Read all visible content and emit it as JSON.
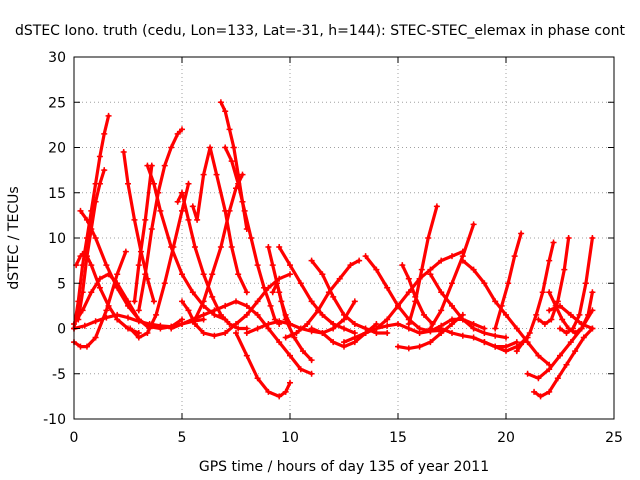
{
  "chart_data": {
    "type": "scatter",
    "title": "dSTEC Iono. truth (cedu, Lon=133, Lat=-31, h=144): STEC-STEC_elemax in phase cont",
    "xlabel": "GPS time / hours of day 135 of year 2011",
    "ylabel": "dSTEC  / TECUs",
    "xlim": [
      0,
      25
    ],
    "ylim": [
      -10,
      30
    ],
    "xticks": [
      0,
      5,
      10,
      15,
      20,
      25
    ],
    "yticks": [
      -10,
      -5,
      0,
      5,
      10,
      15,
      20,
      25,
      30
    ],
    "xtick_labels": [
      "0",
      "5",
      "10",
      "15",
      "20",
      "25"
    ],
    "ytick_labels": [
      "-10",
      "-5",
      "0",
      "5",
      "10",
      "15",
      "20",
      "25",
      "30"
    ],
    "grid": true,
    "marker": "+",
    "color": "#ff0000",
    "series": [
      {
        "x": [
          0.0,
          0.4,
          0.8,
          1.2,
          1.6,
          2.0,
          2.5,
          3.0,
          3.5
        ],
        "y": [
          0.5,
          2.0,
          4.0,
          5.5,
          6.0,
          5.0,
          3.0,
          1.0,
          0.0
        ]
      },
      {
        "x": [
          0.0,
          0.2,
          0.4,
          0.6,
          0.8,
          1.0,
          1.2,
          1.4,
          1.6
        ],
        "y": [
          0.0,
          3.0,
          7.0,
          10.0,
          13.0,
          16.0,
          19.0,
          21.5,
          23.5
        ]
      },
      {
        "x": [
          0.2,
          0.4,
          0.6,
          0.8,
          1.0,
          1.2,
          1.4
        ],
        "y": [
          1.0,
          4.0,
          8.0,
          11.0,
          14.0,
          16.0,
          17.5
        ]
      },
      {
        "x": [
          0.1,
          0.3,
          0.5,
          0.8,
          1.2,
          1.6,
          2.0,
          2.5,
          3.0
        ],
        "y": [
          7.0,
          8.0,
          8.5,
          7.0,
          4.5,
          2.5,
          1.0,
          0.0,
          -0.5
        ]
      },
      {
        "x": [
          0.3,
          0.6,
          1.0,
          1.5,
          2.0,
          2.5,
          3.0,
          3.5,
          4.0,
          4.5,
          5.0
        ],
        "y": [
          13.0,
          12.0,
          10.0,
          7.0,
          4.5,
          2.5,
          1.0,
          0.2,
          0.0,
          0.2,
          1.0
        ]
      },
      {
        "x": [
          0.0,
          0.3,
          0.6,
          1.0,
          1.5,
          2.0,
          2.4
        ],
        "y": [
          -1.5,
          -2.0,
          -2.0,
          -1.0,
          2.0,
          6.0,
          8.5
        ]
      },
      {
        "x": [
          0.0,
          0.5,
          1.0,
          1.5,
          2.0,
          2.5,
          3.0,
          3.5,
          4.0,
          4.5,
          5.0,
          5.5,
          6.0
        ],
        "y": [
          0.0,
          0.3,
          0.8,
          1.2,
          1.5,
          1.2,
          0.8,
          0.5,
          0.3,
          0.2,
          0.5,
          0.8,
          1.0
        ]
      },
      {
        "x": [
          2.3,
          2.5,
          2.8,
          3.1,
          3.4,
          3.7
        ],
        "y": [
          19.5,
          16.0,
          12.0,
          8.5,
          5.5,
          3.0
        ]
      },
      {
        "x": [
          2.6,
          3.0,
          3.4,
          3.8,
          4.2,
          4.6,
          5.0,
          5.3
        ],
        "y": [
          0.0,
          -1.0,
          -0.5,
          1.5,
          5.0,
          9.0,
          13.0,
          16.0
        ]
      },
      {
        "x": [
          3.0,
          3.3,
          3.6,
          3.9,
          4.2,
          4.5,
          4.8,
          5.0
        ],
        "y": [
          2.0,
          6.0,
          11.0,
          15.0,
          18.0,
          20.0,
          21.5,
          22.0
        ]
      },
      {
        "x": [
          2.8,
          3.0,
          3.3,
          3.6
        ],
        "y": [
          3.0,
          7.0,
          12.0,
          18.0
        ]
      },
      {
        "x": [
          3.4,
          3.7,
          4.0,
          4.5,
          5.0,
          5.5,
          6.0,
          6.5,
          7.0
        ],
        "y": [
          18.0,
          16.0,
          13.0,
          9.0,
          6.0,
          4.0,
          2.5,
          1.5,
          1.0
        ]
      },
      {
        "x": [
          4.8,
          5.0,
          5.3,
          5.6,
          6.0,
          6.4,
          6.8,
          7.2,
          7.6,
          8.0
        ],
        "y": [
          14.0,
          15.0,
          12.0,
          9.0,
          6.0,
          3.5,
          1.5,
          0.5,
          0.0,
          0.0
        ]
      },
      {
        "x": [
          5.0,
          5.3,
          5.6,
          6.0,
          6.5,
          7.0,
          7.5,
          8.0,
          8.5,
          9.0,
          9.5,
          10.0
        ],
        "y": [
          3.0,
          2.0,
          0.5,
          -0.5,
          -0.8,
          -0.5,
          0.5,
          1.5,
          3.0,
          4.5,
          5.5,
          6.0
        ]
      },
      {
        "x": [
          5.5,
          5.7,
          6.0,
          6.3,
          6.6,
          7.0,
          7.3,
          7.6,
          8.0
        ],
        "y": [
          13.5,
          12.0,
          17.0,
          20.0,
          17.0,
          13.0,
          9.0,
          6.0,
          4.0
        ]
      },
      {
        "x": [
          6.8,
          7.0,
          7.2,
          7.4,
          7.6,
          7.8,
          8.0
        ],
        "y": [
          25.0,
          24.0,
          22.0,
          20.0,
          17.0,
          14.0,
          11.0
        ]
      },
      {
        "x": [
          7.0,
          7.3,
          7.6,
          7.9,
          8.2,
          8.5,
          8.8,
          9.1,
          9.3,
          9.5
        ],
        "y": [
          20.0,
          18.5,
          16.0,
          13.0,
          10.0,
          7.0,
          4.5,
          2.5,
          1.0,
          0.5
        ]
      },
      {
        "x": [
          5.6,
          6.0,
          6.4,
          6.8,
          7.2,
          7.5,
          7.8
        ],
        "y": [
          1.0,
          3.0,
          6.0,
          9.0,
          13.0,
          15.5,
          17.0
        ]
      },
      {
        "x": [
          7.5,
          8.0,
          8.5,
          9.0,
          9.5,
          9.8,
          10.0
        ],
        "y": [
          -0.5,
          -3.0,
          -5.5,
          -7.0,
          -7.5,
          -7.0,
          -6.0
        ]
      },
      {
        "x": [
          4.5,
          5.0,
          5.5,
          6.0,
          6.5,
          7.0,
          7.5,
          8.0,
          8.5,
          9.0,
          9.5,
          10.0,
          10.5,
          11.0
        ],
        "y": [
          0.0,
          0.5,
          1.0,
          1.5,
          2.0,
          2.5,
          3.0,
          2.5,
          1.5,
          0.0,
          -1.5,
          -3.0,
          -4.5,
          -5.0
        ]
      },
      {
        "x": [
          9.0,
          9.2,
          9.5,
          9.8,
          10.2,
          10.6,
          11.0
        ],
        "y": [
          9.0,
          7.0,
          4.0,
          1.0,
          -1.0,
          -2.5,
          -3.5
        ]
      },
      {
        "x": [
          8.0,
          8.5,
          9.0,
          9.5,
          10.0,
          10.5,
          11.0,
          11.5,
          12.0,
          12.5,
          13.0
        ],
        "y": [
          -0.5,
          0.0,
          0.5,
          0.8,
          0.5,
          0.0,
          -0.3,
          -0.5,
          0.0,
          1.0,
          3.0
        ]
      },
      {
        "x": [
          9.2,
          9.4,
          9.6,
          9.8,
          10.0
        ],
        "y": [
          4.0,
          5.0,
          3.0,
          1.5,
          0.5
        ]
      },
      {
        "x": [
          9.5,
          10.0,
          10.5,
          11.0,
          11.5,
          12.0,
          12.5,
          13.0
        ],
        "y": [
          9.0,
          7.0,
          5.0,
          3.0,
          1.5,
          0.5,
          0.0,
          -0.5
        ]
      },
      {
        "x": [
          9.8,
          10.3,
          10.8,
          11.3,
          11.8,
          12.3,
          12.8,
          13.2
        ],
        "y": [
          -1.0,
          -0.5,
          0.5,
          2.0,
          4.0,
          5.5,
          7.0,
          7.5
        ]
      },
      {
        "x": [
          11.0,
          11.5,
          12.0,
          12.5,
          13.0,
          13.5,
          14.0,
          14.5
        ],
        "y": [
          7.5,
          6.0,
          3.5,
          1.5,
          0.5,
          0.0,
          -0.5,
          -0.5
        ]
      },
      {
        "x": [
          11.0,
          11.5,
          12.0,
          12.5,
          13.0,
          13.5,
          14.0
        ],
        "y": [
          0.0,
          -0.5,
          -1.5,
          -2.0,
          -1.5,
          -0.5,
          0.5
        ]
      },
      {
        "x": [
          12.5,
          13.0,
          13.5,
          14.0,
          14.5,
          15.0,
          15.5,
          16.0,
          16.5,
          17.0,
          17.5,
          18.0
        ],
        "y": [
          -1.5,
          -1.0,
          -0.5,
          0.0,
          1.0,
          2.5,
          4.0,
          5.5,
          6.5,
          7.5,
          8.0,
          8.5
        ]
      },
      {
        "x": [
          13.5,
          14.0,
          14.5,
          15.0,
          15.5,
          16.0,
          16.5,
          17.0
        ],
        "y": [
          8.0,
          6.5,
          4.5,
          2.5,
          1.0,
          0.0,
          -0.3,
          -0.2
        ]
      },
      {
        "x": [
          14.0,
          14.5,
          15.0,
          15.5,
          16.0,
          16.5,
          17.0,
          17.5,
          18.0,
          18.5,
          19.0
        ],
        "y": [
          0.0,
          0.3,
          0.5,
          0.0,
          -0.5,
          -0.3,
          0.3,
          1.0,
          1.0,
          0.5,
          0.0
        ]
      },
      {
        "x": [
          15.2,
          15.5,
          15.8,
          16.2,
          16.6
        ],
        "y": [
          7.0,
          5.5,
          3.5,
          1.5,
          0.5
        ]
      },
      {
        "x": [
          15.0,
          15.5,
          16.0,
          16.5,
          17.0,
          17.5,
          18.0
        ],
        "y": [
          -2.0,
          -2.2,
          -2.0,
          -1.5,
          -0.5,
          0.5,
          1.5
        ]
      },
      {
        "x": [
          15.5,
          15.8,
          16.1,
          16.4,
          16.8
        ],
        "y": [
          0.5,
          3.0,
          6.5,
          10.0,
          13.5
        ]
      },
      {
        "x": [
          16.5,
          17.0,
          17.5,
          18.0,
          18.5,
          19.0,
          19.5,
          20.0
        ],
        "y": [
          6.0,
          4.0,
          2.5,
          1.0,
          0.0,
          -0.5,
          -0.8,
          -1.0
        ]
      },
      {
        "x": [
          16.5,
          17.0,
          17.5,
          18.0,
          18.5
        ],
        "y": [
          0.0,
          2.0,
          5.0,
          8.0,
          11.5
        ]
      },
      {
        "x": [
          18.0,
          18.5,
          19.0,
          19.5,
          20.0,
          20.5,
          21.0,
          21.5,
          22.0
        ],
        "y": [
          7.5,
          6.5,
          5.0,
          3.0,
          1.5,
          0.0,
          -1.5,
          -3.0,
          -4.0
        ]
      },
      {
        "x": [
          19.0,
          19.5,
          20.0,
          20.5,
          21.0
        ],
        "y": [
          -1.5,
          -2.0,
          -2.5,
          -2.0,
          -1.0
        ]
      },
      {
        "x": [
          17.0,
          17.5,
          18.0,
          18.5,
          19.0,
          19.5,
          20.0,
          20.5
        ],
        "y": [
          0.0,
          -0.5,
          -0.8,
          -1.0,
          -1.5,
          -2.0,
          -2.0,
          -1.5
        ]
      },
      {
        "x": [
          19.5,
          19.8,
          20.1,
          20.4,
          20.7
        ],
        "y": [
          0.0,
          2.5,
          5.0,
          8.0,
          10.5
        ]
      },
      {
        "x": [
          20.5,
          20.8,
          21.1,
          21.4,
          21.7,
          22.0,
          22.2
        ],
        "y": [
          -2.5,
          -1.5,
          -0.5,
          1.5,
          4.0,
          7.5,
          9.5
        ]
      },
      {
        "x": [
          21.3,
          21.6,
          22.0,
          22.4,
          22.8,
          23.2,
          23.6,
          24.0
        ],
        "y": [
          -7.0,
          -7.5,
          -7.0,
          -5.5,
          -4.0,
          -2.5,
          -1.0,
          0.0
        ]
      },
      {
        "x": [
          21.0,
          21.5,
          22.0,
          22.5,
          23.0,
          23.5,
          24.0
        ],
        "y": [
          -5.0,
          -5.5,
          -4.5,
          -3.0,
          -1.5,
          0.0,
          2.0
        ]
      },
      {
        "x": [
          22.0,
          22.3,
          22.6,
          22.9,
          23.2,
          23.5,
          23.8,
          24.0
        ],
        "y": [
          4.0,
          2.5,
          1.0,
          0.0,
          -0.5,
          0.0,
          1.5,
          4.0
        ]
      },
      {
        "x": [
          21.5,
          21.8,
          22.1,
          22.4,
          22.7,
          22.9
        ],
        "y": [
          1.0,
          0.5,
          1.0,
          3.0,
          6.5,
          10.0
        ]
      },
      {
        "x": [
          22.5,
          22.8,
          23.1,
          23.4,
          23.7,
          24.0
        ],
        "y": [
          0.0,
          -0.5,
          0.0,
          1.5,
          5.0,
          10.0
        ]
      },
      {
        "x": [
          22.0,
          22.5,
          23.0,
          23.5,
          24.0
        ],
        "y": [
          2.0,
          2.5,
          1.5,
          0.5,
          0.0
        ]
      }
    ]
  }
}
